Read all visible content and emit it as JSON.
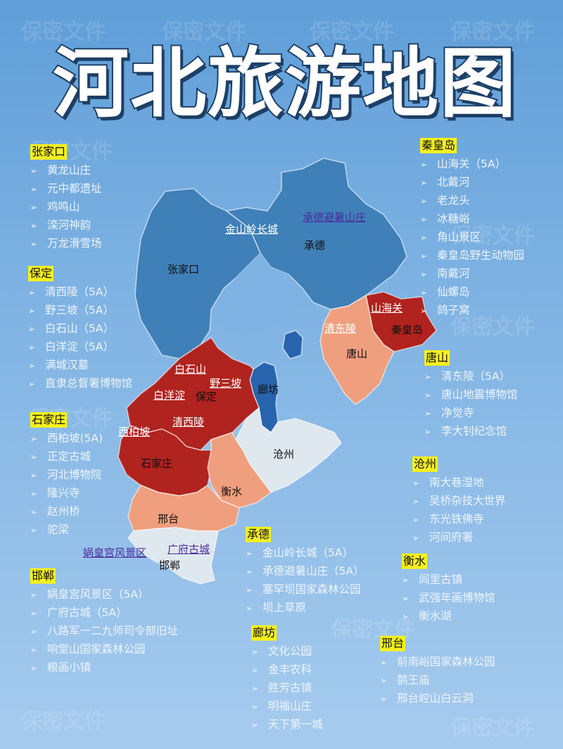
{
  "watermark": "保密文件",
  "title": "河北旅游地图",
  "colors": {
    "zone_blue": "#3f80b8",
    "zone_dark_blue": "#2864ad",
    "zone_red": "#b0231f",
    "zone_salmon": "#ef9f7e",
    "zone_light": "#dfe8ef",
    "heading_bg": "#f5f01e"
  },
  "map": {
    "cities": [
      "张家口",
      "承德",
      "秦皇岛",
      "唐山",
      "廊坊",
      "保定",
      "石家庄",
      "沧州",
      "衡水",
      "邢台",
      "邯郸"
    ],
    "spots": [
      "金山岭长城",
      "承德避暑山庄",
      "山海关",
      "清东陵",
      "白石山",
      "野三坡",
      "白洋淀",
      "清西陵",
      "西柏坡",
      "娲皇宫风景区",
      "广府古城"
    ]
  },
  "sections": [
    {
      "name": "张家口",
      "items": [
        "黄龙山庄",
        "元中都遗址",
        "鸡鸣山",
        "滦河神韵",
        "万龙滑雪场"
      ]
    },
    {
      "name": "保定",
      "items": [
        "清西陵（5A）",
        "野三坡（5A）",
        "白石山（5A）",
        "白洋淀（5A）",
        "满城汉墓",
        "直隶总督署博物馆"
      ]
    },
    {
      "name": "石家庄",
      "items": [
        "西柏坡(5A)",
        "正定古城",
        "河北博物院",
        "隆兴寺",
        "赵州桥",
        "驼梁"
      ]
    },
    {
      "name": "邯郸",
      "items": [
        "娲皇宫风景区（5A）",
        "广府古城（5A）",
        "八路军一二九师司令部旧址",
        "响堂山国家森林公园",
        "粮画小镇"
      ]
    },
    {
      "name": "秦皇岛",
      "items": [
        "山海关（5A）",
        "北戴河",
        "老龙头",
        "冰糖峪",
        "角山景区",
        "秦皇岛野生动物园",
        "南戴河",
        "仙螺岛",
        "鸽子窝"
      ]
    },
    {
      "name": "唐山",
      "items": [
        "清东陵（5A）",
        "唐山地震博物馆",
        "净觉寺",
        "李大钊纪念馆"
      ]
    },
    {
      "name": "沧州",
      "items": [
        "南大巷湿地",
        "吴桥杂技大世界",
        "东光铁佛寺",
        "河间府署"
      ]
    },
    {
      "name": "承德",
      "items": [
        "金山岭长城（5A）",
        "承德避暑山庄（5A）",
        "塞罕坝国家森林公园",
        "坝上草原"
      ]
    },
    {
      "name": "衡水",
      "items": [
        "闾里古镇",
        "武强年画博物馆",
        "衡水湖"
      ]
    },
    {
      "name": "廊坊",
      "items": [
        "文化公园",
        "金丰农科",
        "胜芳古镇",
        "明福山庄",
        "天下第一城"
      ]
    },
    {
      "name": "邢台",
      "items": [
        "前南峪国家森林公园",
        "鹊王庙",
        "邢台崆山白云洞"
      ]
    }
  ]
}
